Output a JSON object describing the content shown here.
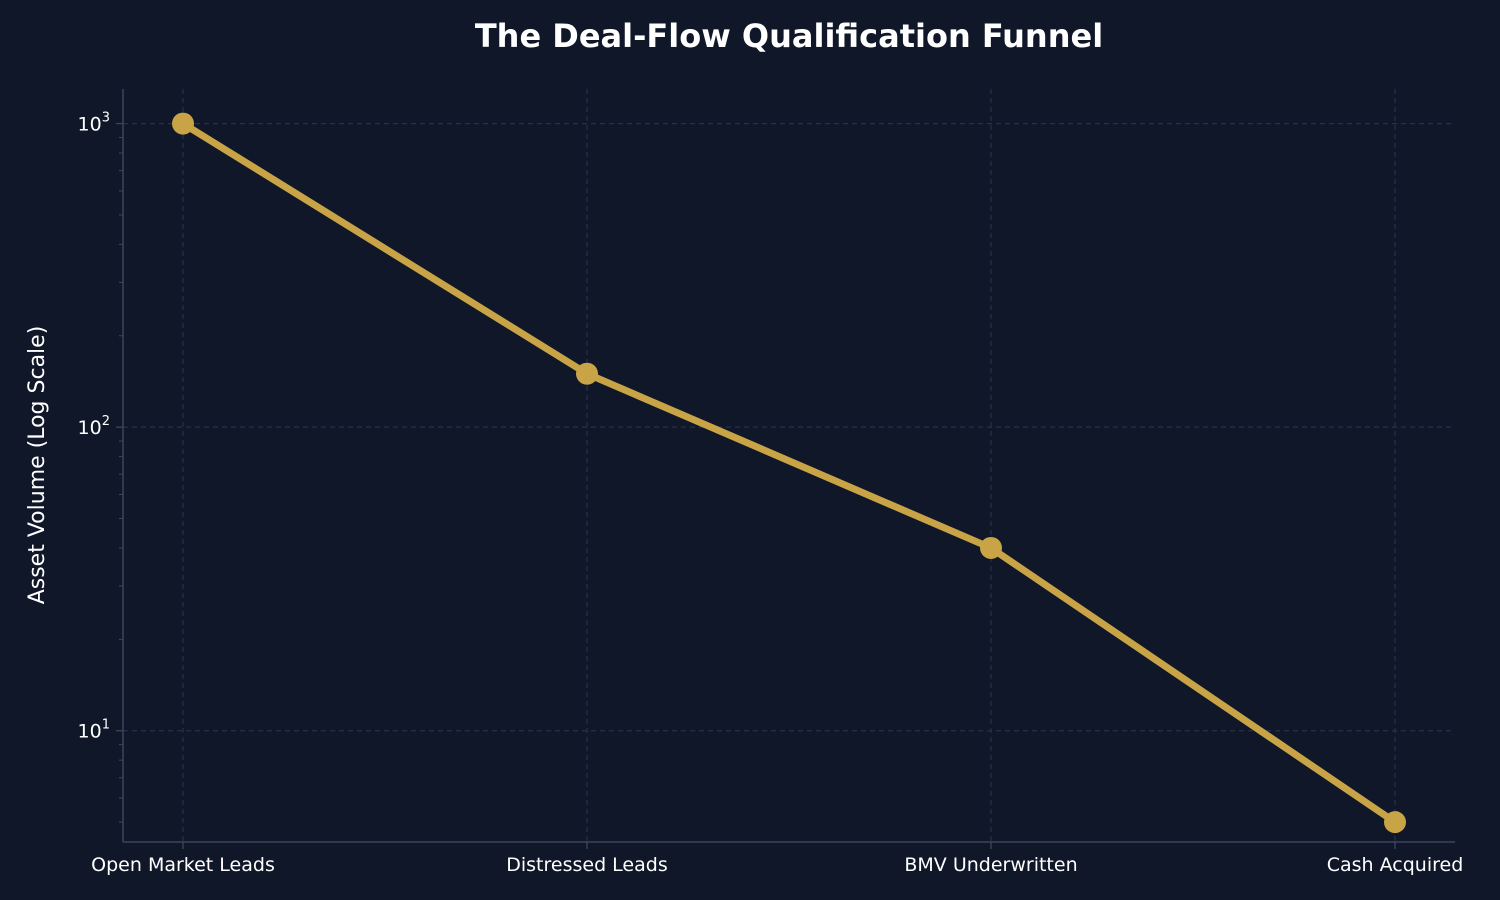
{
  "chart_data": {
    "type": "line",
    "title": "The Deal-Flow Qualification Funnel",
    "xlabel": "",
    "ylabel": "Asset Volume (Log Scale)",
    "yscale": "log",
    "ylim": [
      4.3,
      1300
    ],
    "categories": [
      "Open Market Leads",
      "Distressed Leads",
      "BMV Underwritten",
      "Cash Acquired"
    ],
    "series": [
      {
        "values": [
          1000,
          150,
          40,
          5
        ]
      }
    ],
    "yticks": [
      {
        "value": 10,
        "base": "10",
        "exp": "1"
      },
      {
        "value": 100,
        "base": "10",
        "exp": "2"
      },
      {
        "value": 1000,
        "base": "10",
        "exp": "3"
      }
    ],
    "grid": true,
    "colors": {
      "background": "#0f1729",
      "line": "#c9a447",
      "grid": "#26324a",
      "axis": "#3a4660",
      "text": "#ffffff"
    }
  }
}
